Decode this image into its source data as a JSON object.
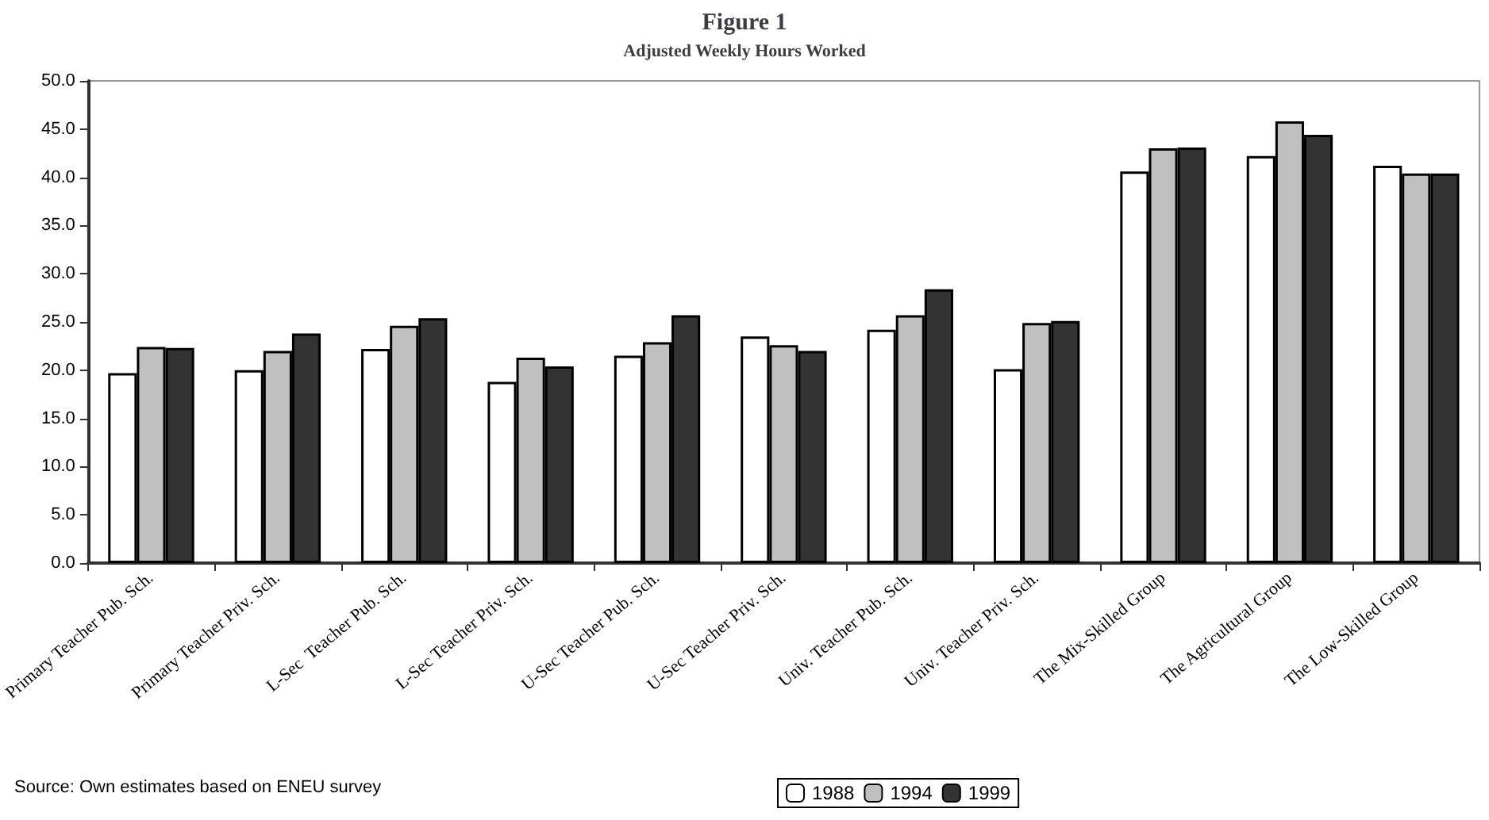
{
  "chart_data": {
    "type": "bar",
    "title": "Figure 1",
    "subtitle": "Adjusted Weekly Hours Worked",
    "categories": [
      "Primary Teacher Pub. Sch.",
      "Primary Teacher Priv. Sch.",
      "L-Sec  Teacher Pub. Sch.",
      "L-Sec Teacher Priv. Sch.",
      "U-Sec Teacher Pub. Sch.",
      "U-Sec Teacher Priv. Sch.",
      "Univ. Teacher Pub. Sch.",
      "Univ. Teacher Priv. Sch.",
      "The Mix-Skilled Group",
      "The Agricultural Group",
      "The Low-Skilled Group"
    ],
    "series": [
      {
        "name": "1988",
        "color": "#ffffff",
        "values": [
          19.7,
          20.0,
          22.2,
          18.8,
          21.5,
          23.5,
          24.2,
          20.1,
          40.6,
          42.2,
          41.2
        ]
      },
      {
        "name": "1994",
        "color": "#c0c0c0",
        "values": [
          22.4,
          22.0,
          24.6,
          21.3,
          22.9,
          22.6,
          25.7,
          24.9,
          43.0,
          45.8,
          40.4
        ]
      },
      {
        "name": "1999",
        "color": "#333333",
        "values": [
          22.3,
          23.8,
          25.4,
          20.4,
          25.7,
          22.0,
          28.4,
          25.1,
          43.1,
          44.4,
          40.4
        ]
      }
    ],
    "ylim": [
      0,
      50
    ],
    "yticks": [
      {
        "value": 0,
        "label": "0.0"
      },
      {
        "value": 5,
        "label": "5.0"
      },
      {
        "value": 10,
        "label": "10.0"
      },
      {
        "value": 15,
        "label": "15.0"
      },
      {
        "value": 20,
        "label": "20.0"
      },
      {
        "value": 25,
        "label": "25.0"
      },
      {
        "value": 30,
        "label": "30.0"
      },
      {
        "value": 35,
        "label": "35.0"
      },
      {
        "value": 40,
        "label": "40.0"
      },
      {
        "value": 45,
        "label": "45.0"
      },
      {
        "value": 50,
        "label": "50.0"
      }
    ],
    "grid": false,
    "legend": "bottom",
    "annotations": [
      "Source: Own estimates based on ENEU survey"
    ]
  }
}
